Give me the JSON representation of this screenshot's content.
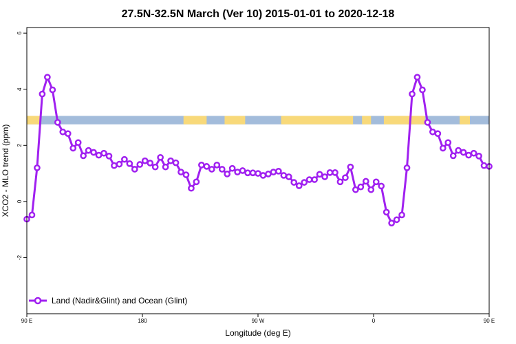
{
  "chart_data": {
    "type": "line",
    "title": "27.5N-32.5N March (Ver 10)   2015-01-01 to 2020-12-18",
    "xlabel": "Longitude (deg E)",
    "ylabel": "XCO2 - MLO trend (ppm)",
    "xlim": [
      90,
      450
    ],
    "ylim": [
      -4,
      6.2
    ],
    "x_ticks": [
      {
        "value": 90,
        "label": "90 E"
      },
      {
        "value": 180,
        "label": "180"
      },
      {
        "value": 270,
        "label": "90 W"
      },
      {
        "value": 360,
        "label": "0"
      },
      {
        "value": 450,
        "label": "90 E"
      },
      {
        "value": 540,
        "label": "180"
      }
    ],
    "y_ticks": [
      {
        "value": -2,
        "label": "-2"
      },
      {
        "value": 0,
        "label": "0"
      },
      {
        "value": 2,
        "label": "2"
      },
      {
        "value": 4,
        "label": "4"
      },
      {
        "value": 6,
        "label": "6"
      }
    ],
    "land_strip": {
      "y_range": [
        2.75,
        3.05
      ],
      "ocean_color": "#a3bcdb",
      "land_color": "#f8d97a",
      "land_segments": [
        [
          90,
          100
        ],
        [
          212,
          230
        ],
        [
          244,
          260
        ],
        [
          288,
          344
        ],
        [
          351,
          358
        ],
        [
          368,
          400
        ],
        [
          427,
          435
        ]
      ]
    },
    "series": [
      {
        "name": "Land (Nadir&Glint) and Ocean (Glint)",
        "color": "#a020f0",
        "x": [
          90,
          94,
          98,
          102,
          106,
          110,
          114,
          118,
          122,
          126,
          130,
          134,
          138,
          142,
          146,
          150,
          154,
          158,
          162,
          166,
          170,
          174,
          178,
          182,
          186,
          190,
          194,
          198,
          202,
          206,
          210,
          214,
          218,
          222,
          226,
          230,
          234,
          238,
          242,
          246,
          250,
          254,
          258,
          262,
          266,
          270,
          274,
          278,
          282,
          286,
          290,
          294,
          298,
          302,
          306,
          310,
          314,
          318,
          322,
          326,
          330,
          334,
          338,
          342,
          346,
          350,
          354,
          358,
          362,
          366,
          370,
          374,
          378,
          382,
          386,
          390,
          394,
          398,
          402,
          406,
          410,
          414,
          418,
          422,
          426,
          430,
          434,
          438,
          442,
          446,
          450
        ],
        "y": [
          -0.63,
          -0.48,
          1.2,
          3.83,
          4.43,
          3.98,
          2.82,
          2.48,
          2.42,
          1.9,
          2.1,
          1.63,
          1.82,
          1.75,
          1.65,
          1.72,
          1.62,
          1.28,
          1.33,
          1.5,
          1.35,
          1.15,
          1.32,
          1.45,
          1.37,
          1.23,
          1.57,
          1.23,
          1.45,
          1.38,
          1.05,
          0.95,
          0.47,
          0.7,
          1.3,
          1.25,
          1.15,
          1.3,
          1.15,
          0.98,
          1.18,
          1.05,
          1.1,
          1.02,
          1.02,
          1.0,
          0.93,
          0.98,
          1.05,
          1.08,
          0.93,
          0.88,
          0.68,
          0.56,
          0.68,
          0.78,
          0.78,
          0.97,
          0.88,
          1.03,
          1.03,
          0.7,
          0.85,
          1.23,
          0.42,
          0.52,
          0.72,
          0.42,
          0.7,
          0.55,
          -0.38,
          -0.77,
          -0.65,
          -0.48,
          1.2,
          3.83,
          4.43,
          3.98,
          2.82,
          2.48,
          2.42,
          1.9,
          2.1,
          1.63,
          1.82,
          1.75,
          1.65,
          1.72,
          1.62,
          1.28,
          1.25
        ]
      }
    ],
    "legend_position": "bottom-left"
  }
}
